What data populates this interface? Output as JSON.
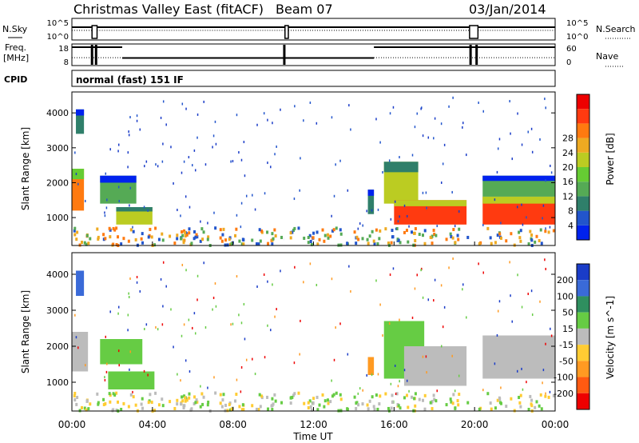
{
  "header": {
    "title": "Christmas Valley East (fitACF)",
    "beam": "Beam 07",
    "date": "03/Jan/2014"
  },
  "labels": {
    "nsky": "N.Sky",
    "nsearch": "N.Search",
    "freq_top": "Freq.",
    "freq_bottom": "[MHz]",
    "nave": "Nave",
    "cpid": "CPID",
    "cpid_value": "normal (fast) 151 IF",
    "x_axis": "Time UT"
  },
  "chart_data": [
    {
      "type": "line",
      "name": "noise-panel",
      "y_left_ticks": [
        "10^5",
        "10^0"
      ],
      "y_right_ticks": [
        "10^5",
        "10^0"
      ],
      "segments": [
        {
          "from": "00:00",
          "to": "01:00",
          "level": "high"
        },
        {
          "from": "01:00",
          "to": "01:15",
          "level": "gap"
        },
        {
          "from": "01:15",
          "to": "10:35",
          "level": "high"
        },
        {
          "from": "10:35",
          "to": "10:45",
          "level": "gap"
        },
        {
          "from": "10:45",
          "to": "19:45",
          "level": "high"
        },
        {
          "from": "19:45",
          "to": "20:10",
          "level": "gap"
        },
        {
          "from": "20:10",
          "to": "24:00",
          "level": "high"
        }
      ]
    },
    {
      "type": "line",
      "name": "freq-nave-panel",
      "y_left_ticks": [
        "18",
        "8"
      ],
      "y_right_ticks": [
        "60",
        "0"
      ],
      "freq_mhz": [
        {
          "from": "00:00",
          "to": "02:30",
          "value": 16.5
        },
        {
          "from": "02:30",
          "to": "15:00",
          "value": 11.5
        },
        {
          "from": "15:00",
          "to": "24:00",
          "value": 16.5
        }
      ],
      "nave": 22
    },
    {
      "type": "heatmap",
      "name": "power-panel",
      "ylabel": "Slant Range [km]",
      "y_ticks": [
        1000,
        2000,
        3000,
        4000
      ],
      "ylim": [
        200,
        4600
      ],
      "colorbar": {
        "label": "Power [dB]",
        "ticks": [
          4,
          8,
          12,
          16,
          20,
          24,
          28
        ],
        "colors": [
          "#0022ee",
          "#2255cc",
          "#2f7f6a",
          "#55aa55",
          "#66cc33",
          "#bbcc22",
          "#eeaa22",
          "#ff7a10",
          "#ff3a10",
          "#ee0000"
        ]
      },
      "echo_regions": [
        {
          "t0": 0.0,
          "t1": 0.6,
          "r0": 1200,
          "r1": 2400,
          "level": 0.75
        },
        {
          "t0": 0.2,
          "t1": 0.6,
          "r0": 3400,
          "r1": 4100,
          "level": 0.25
        },
        {
          "t0": 1.4,
          "t1": 3.2,
          "r0": 1400,
          "r1": 2200,
          "level": 0.3
        },
        {
          "t0": 2.2,
          "t1": 4.0,
          "r0": 800,
          "r1": 1300,
          "level": 0.6
        },
        {
          "t0": 14.7,
          "t1": 15.0,
          "r0": 1100,
          "r1": 1800,
          "level": 0.2
        },
        {
          "t0": 15.5,
          "t1": 17.2,
          "r0": 1400,
          "r1": 2600,
          "level": 0.55
        },
        {
          "t0": 16.0,
          "t1": 19.6,
          "r0": 800,
          "r1": 1500,
          "level": 0.85
        },
        {
          "t0": 20.4,
          "t1": 24.0,
          "r0": 800,
          "r1": 1600,
          "level": 0.85
        },
        {
          "t0": 20.4,
          "t1": 24.0,
          "r0": 1600,
          "r1": 2200,
          "level": 0.35
        }
      ]
    },
    {
      "type": "heatmap",
      "name": "velocity-panel",
      "ylabel": "Slant Range [km]",
      "y_ticks": [
        1000,
        2000,
        3000,
        4000
      ],
      "ylim": [
        200,
        4600
      ],
      "colorbar": {
        "label": "Velocity [m s^-1]",
        "ticks": [
          200,
          100,
          50,
          15,
          -15,
          -50,
          -100,
          -200
        ],
        "colors": [
          "#1a3cc8",
          "#3a6ad8",
          "#2f8f5f",
          "#66cc44",
          "#bcbcbc",
          "#ffcc33",
          "#ff9a22",
          "#ff5a11",
          "#ee0000"
        ]
      },
      "echo_regions": [
        {
          "t0": 0.0,
          "t1": 0.8,
          "r0": 1300,
          "r1": 2400,
          "color": "#bcbcbc"
        },
        {
          "t0": 0.2,
          "t1": 0.6,
          "r0": 3400,
          "r1": 4100,
          "color": "#3a6ad8"
        },
        {
          "t0": 1.4,
          "t1": 3.5,
          "r0": 1500,
          "r1": 2200,
          "color": "#66cc44"
        },
        {
          "t0": 1.8,
          "t1": 4.1,
          "r0": 800,
          "r1": 1300,
          "color": "#66cc44"
        },
        {
          "t0": 14.7,
          "t1": 15.0,
          "r0": 1200,
          "r1": 1700,
          "color": "#ff9a22"
        },
        {
          "t0": 15.5,
          "t1": 17.5,
          "r0": 1100,
          "r1": 2700,
          "color": "#66cc44"
        },
        {
          "t0": 16.5,
          "t1": 19.6,
          "r0": 900,
          "r1": 2000,
          "color": "#bcbcbc"
        },
        {
          "t0": 20.4,
          "t1": 24.0,
          "r0": 1100,
          "r1": 2300,
          "color": "#bcbcbc"
        }
      ]
    }
  ],
  "x_ticks": [
    "00:00",
    "04:00",
    "08:00",
    "12:00",
    "16:00",
    "20:00",
    "00:00"
  ]
}
